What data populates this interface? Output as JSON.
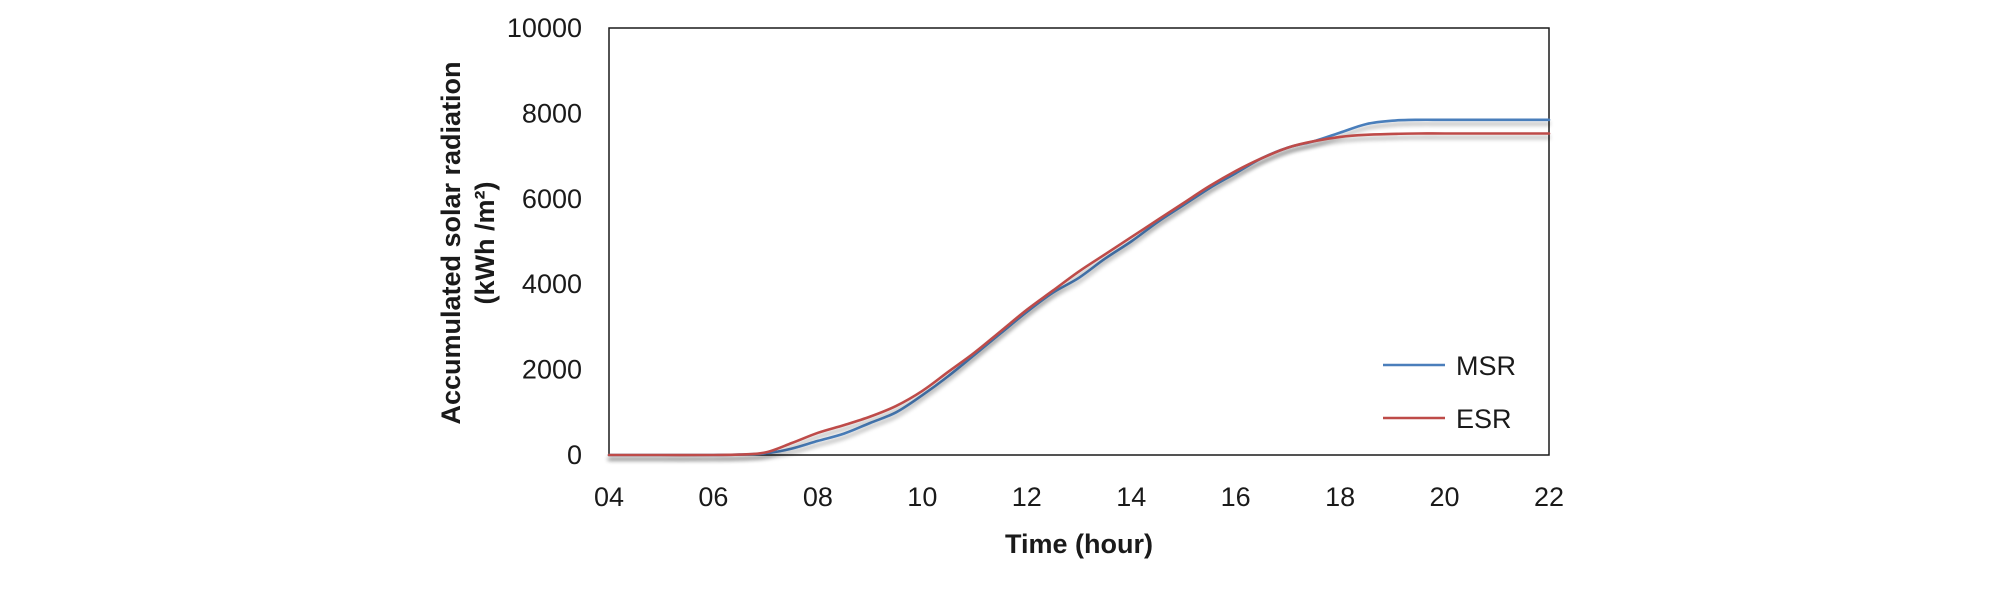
{
  "chart_data": {
    "type": "line",
    "title": "",
    "xlabel": "Time (hour)",
    "ylabel": "Accumulated solar radiation",
    "ylabel_unit": "(kWh /m²)",
    "xlim": [
      4,
      22
    ],
    "ylim": [
      0,
      10000
    ],
    "x_ticks": [
      4,
      6,
      8,
      10,
      12,
      14,
      16,
      18,
      20,
      22
    ],
    "x_tick_labels": [
      "04",
      "06",
      "08",
      "10",
      "12",
      "14",
      "16",
      "18",
      "20",
      "22"
    ],
    "y_ticks": [
      0,
      2000,
      4000,
      6000,
      8000,
      10000
    ],
    "y_tick_labels": [
      "0",
      "2000",
      "4000",
      "6000",
      "8000",
      "10000"
    ],
    "grid": false,
    "legend_position": "bottom-right",
    "x": [
      4,
      5,
      6,
      6.5,
      7,
      7.5,
      8,
      8.5,
      9,
      9.5,
      10,
      10.5,
      11,
      11.5,
      12,
      12.5,
      13,
      13.5,
      14,
      14.5,
      15,
      15.5,
      16,
      16.5,
      17,
      17.5,
      18,
      18.5,
      19,
      19.5,
      20,
      21,
      22
    ],
    "series": [
      {
        "name": "MSR",
        "color": "#4a7ebb",
        "values": [
          0,
          0,
          0,
          10,
          40,
          150,
          330,
          500,
          750,
          1000,
          1400,
          1850,
          2350,
          2850,
          3350,
          3800,
          4150,
          4600,
          5000,
          5450,
          5850,
          6250,
          6600,
          6950,
          7200,
          7350,
          7550,
          7750,
          7830,
          7850,
          7850,
          7850,
          7850
        ]
      },
      {
        "name": "ESR",
        "color": "#be4b48",
        "values": [
          0,
          0,
          0,
          10,
          60,
          280,
          520,
          700,
          900,
          1150,
          1500,
          1950,
          2400,
          2900,
          3400,
          3850,
          4300,
          4700,
          5100,
          5500,
          5900,
          6300,
          6650,
          6950,
          7200,
          7350,
          7450,
          7500,
          7520,
          7530,
          7530,
          7530,
          7530
        ]
      }
    ]
  }
}
